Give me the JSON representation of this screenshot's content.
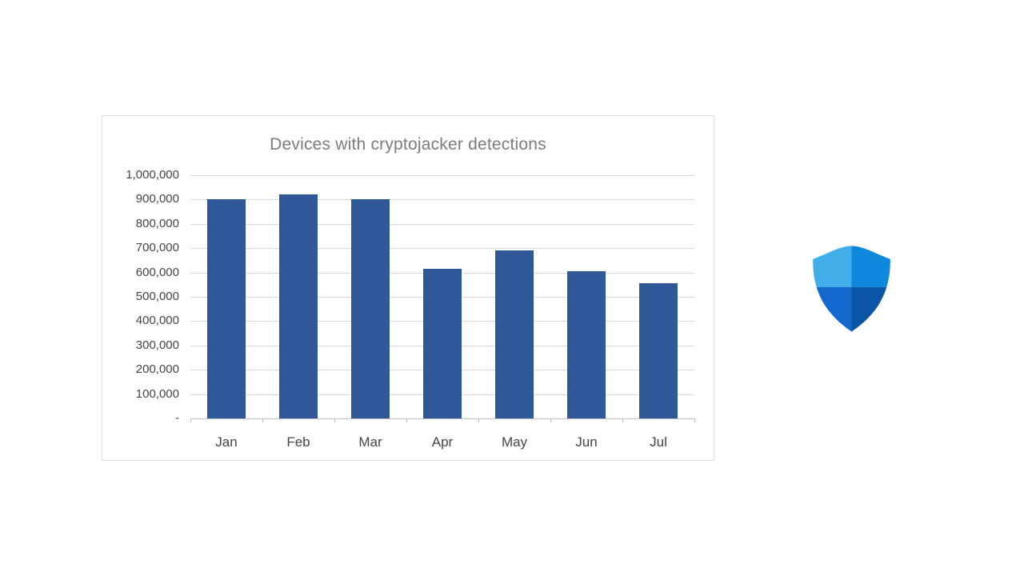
{
  "page": {
    "background": "#ffffff"
  },
  "chart_card": {
    "border_color": "#e0e0e0",
    "background": "#ffffff"
  },
  "chart_data": {
    "type": "bar",
    "title": "Devices with cryptojacker detections",
    "categories": [
      "Jan",
      "Feb",
      "Mar",
      "Apr",
      "May",
      "Jun",
      "Jul"
    ],
    "values": [
      900000,
      920000,
      900000,
      615000,
      690000,
      605000,
      555000
    ],
    "xlabel": "",
    "ylabel": "",
    "ylim": [
      0,
      1000000
    ],
    "ytick_step": 100000,
    "ytick_labels": [
      "-",
      "100,000",
      "200,000",
      "300,000",
      "400,000",
      "500,000",
      "600,000",
      "700,000",
      "800,000",
      "900,000",
      "1,000,000"
    ],
    "grid": true,
    "legend": false,
    "bar_color": "#2f5899",
    "gridline_color": "#d9d9d9",
    "axis_line_color": "#bfbfbf",
    "tick_label_color": "#444444",
    "title_color": "#7c7c7c"
  },
  "defender_icon": {
    "label": "Microsoft Defender shield",
    "colors": {
      "top_left": "#42aee9",
      "top_right": "#0e88dd",
      "bottom_left": "#1569ce",
      "bottom_right": "#0c55a6"
    }
  }
}
